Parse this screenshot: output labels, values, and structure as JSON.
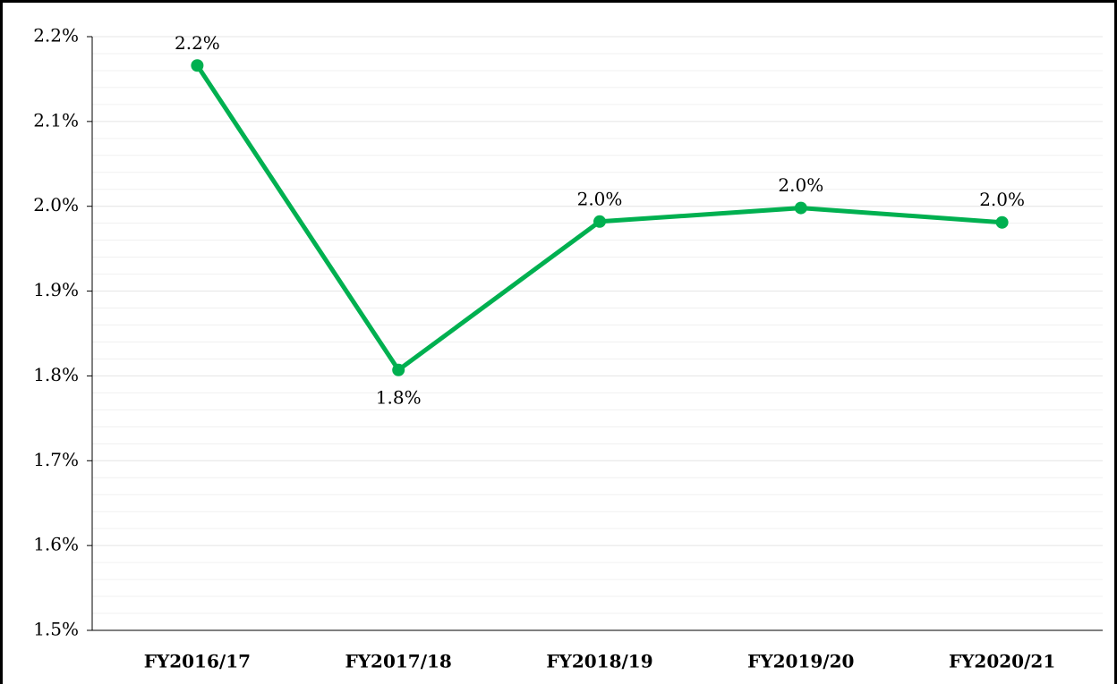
{
  "chart_data": {
    "type": "line",
    "categories": [
      "FY2016/17",
      "FY2017/18",
      "FY2018/19",
      "FY2019/20",
      "FY2020/21"
    ],
    "series": [
      {
        "name": null,
        "color": "#00b050",
        "values": [
          2.166,
          1.807,
          1.982,
          1.998,
          1.981
        ],
        "value_labels": [
          "2.2%",
          "1.8%",
          "2.0%",
          "2.0%",
          "2.0%"
        ]
      }
    ],
    "ylim": [
      1.5,
      2.2
    ],
    "yticks": [
      {
        "value": 1.5,
        "label": "1.5%"
      },
      {
        "value": 1.6,
        "label": "1.6%"
      },
      {
        "value": 1.7,
        "label": "1.7%"
      },
      {
        "value": 1.8,
        "label": "1.8%"
      },
      {
        "value": 1.9,
        "label": "1.9%"
      },
      {
        "value": 2.0,
        "label": "2.0%"
      },
      {
        "value": 2.1,
        "label": "2.1%"
      },
      {
        "value": 2.2,
        "label": "2.2%"
      }
    ],
    "grid": true,
    "minor_grid": true
  }
}
